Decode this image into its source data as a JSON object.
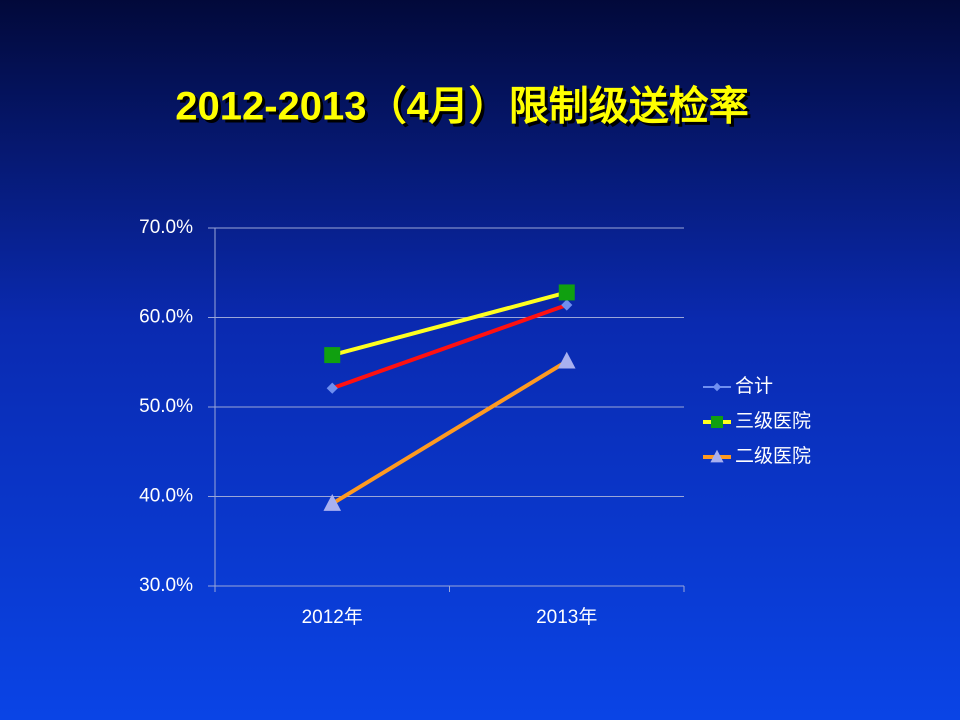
{
  "chart_data": {
    "type": "line",
    "title": "2012-2013（4月）限制级送检率",
    "categories": [
      "2012年",
      "2013年"
    ],
    "series": [
      {
        "name": "合计",
        "color": "#6f8ff0",
        "line_color": "#ff1010",
        "marker": "diamond",
        "values": [
          52.1,
          61.4
        ]
      },
      {
        "name": "三级医院",
        "color": "#10a010",
        "line_color": "#ffff20",
        "marker": "square",
        "values": [
          55.8,
          62.8
        ]
      },
      {
        "name": "二级医院",
        "color": "#a8b0f0",
        "line_color": "#ff9a20",
        "marker": "triangle",
        "values": [
          39.2,
          55.1
        ]
      }
    ],
    "ylim": [
      30,
      70
    ],
    "yticks": [
      {
        "value": 30,
        "label": "30.0%"
      },
      {
        "value": 40,
        "label": "40.0%"
      },
      {
        "value": 50,
        "label": "50.0%"
      },
      {
        "value": 60,
        "label": "60.0%"
      },
      {
        "value": 70,
        "label": "70.0%"
      }
    ],
    "grid": true,
    "legend": "right"
  }
}
